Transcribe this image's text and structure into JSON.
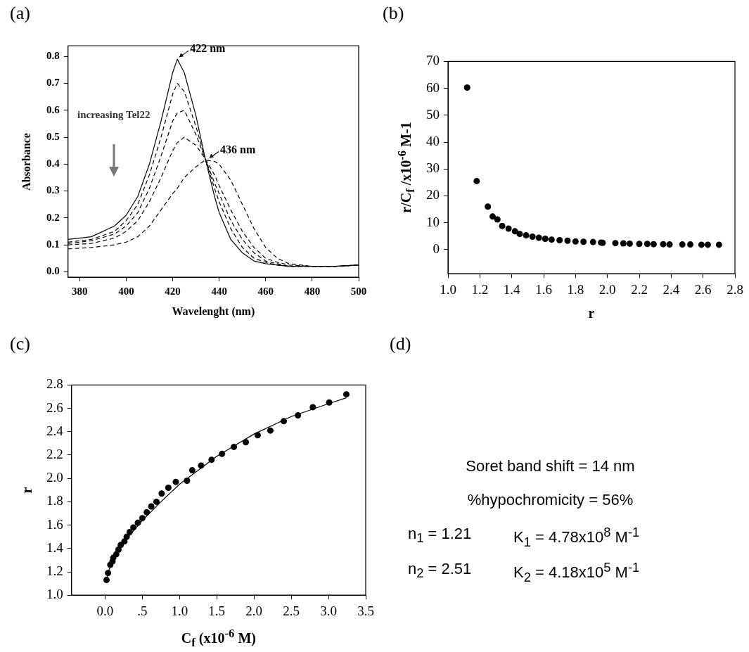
{
  "chart_data": [
    {
      "type": "line",
      "title": "(a)",
      "xlabel": "Wavelenght (nm)",
      "ylabel": "Absorbance",
      "x": [
        375,
        385,
        395,
        400,
        405,
        410,
        415,
        420,
        422,
        425,
        430,
        434,
        438,
        440,
        445,
        450,
        455,
        460,
        465,
        470,
        480,
        490,
        500
      ],
      "series": [
        {
          "color": "#000000",
          "line_style": "solid",
          "values": [
            0.12,
            0.13,
            0.17,
            0.21,
            0.28,
            0.4,
            0.56,
            0.74,
            0.79,
            0.74,
            0.58,
            0.42,
            0.28,
            0.22,
            0.12,
            0.07,
            0.04,
            0.03,
            0.025,
            0.02,
            0.02,
            0.02,
            0.025
          ]
        },
        {
          "color": "#000000",
          "line_style": "dashed",
          "values": [
            0.11,
            0.12,
            0.15,
            0.19,
            0.25,
            0.36,
            0.5,
            0.66,
            0.7,
            0.67,
            0.54,
            0.42,
            0.31,
            0.26,
            0.16,
            0.09,
            0.05,
            0.035,
            0.025,
            0.02,
            0.02,
            0.02,
            0.025
          ]
        },
        {
          "color": "#000000",
          "line_style": "dashed",
          "values": [
            0.105,
            0.115,
            0.14,
            0.17,
            0.22,
            0.31,
            0.43,
            0.56,
            0.59,
            0.6,
            0.51,
            0.42,
            0.33,
            0.29,
            0.19,
            0.12,
            0.07,
            0.04,
            0.03,
            0.02,
            0.02,
            0.02,
            0.025
          ]
        },
        {
          "color": "#000000",
          "line_style": "dashed",
          "values": [
            0.1,
            0.105,
            0.125,
            0.15,
            0.19,
            0.26,
            0.35,
            0.45,
            0.48,
            0.5,
            0.47,
            0.42,
            0.36,
            0.32,
            0.23,
            0.15,
            0.09,
            0.05,
            0.035,
            0.025,
            0.02,
            0.02,
            0.025
          ]
        },
        {
          "color": "#000000",
          "line_style": "dashed",
          "values": [
            0.085,
            0.09,
            0.1,
            0.11,
            0.13,
            0.17,
            0.23,
            0.29,
            0.31,
            0.35,
            0.39,
            0.415,
            0.41,
            0.4,
            0.34,
            0.25,
            0.16,
            0.09,
            0.05,
            0.03,
            0.02,
            0.02,
            0.025
          ]
        }
      ],
      "xlim": [
        375,
        500
      ],
      "xticks": [
        380,
        400,
        420,
        440,
        460,
        480,
        500
      ],
      "ylim": [
        -0.02,
        0.84
      ],
      "yticks": [
        {
          "value": 0,
          "label": "0.0"
        },
        0.1,
        0.2,
        0.3,
        0.4,
        0.5,
        0.6,
        0.7,
        0.8
      ],
      "annotations": [
        {
          "text": "422 nm",
          "x": 422,
          "y": 0.79
        },
        {
          "text": "436 nm",
          "x": 435,
          "y": 0.415
        },
        "increasing Tel22"
      ],
      "grid": false,
      "legend": false
    },
    {
      "type": "scatter",
      "title": "(b)",
      "xlabel": "r",
      "ylabel": "r/C$_{f}$ /x10$^{-6}$ M-1",
      "x": [
        1.12,
        1.18,
        1.25,
        1.28,
        1.31,
        1.34,
        1.38,
        1.42,
        1.45,
        1.49,
        1.53,
        1.57,
        1.61,
        1.65,
        1.7,
        1.75,
        1.8,
        1.85,
        1.91,
        1.96,
        1.97,
        2.05,
        2.1,
        2.14,
        2.2,
        2.25,
        2.29,
        2.35,
        2.39,
        2.47,
        2.52,
        2.59,
        2.63,
        2.7
      ],
      "series": [
        {
          "color": "#000000",
          "values": [
            60.3,
            25.5,
            16,
            12.3,
            11.2,
            8.8,
            7.8,
            6.8,
            5.8,
            5.3,
            4.8,
            4.4,
            4.0,
            3.7,
            3.5,
            3.3,
            3.0,
            2.9,
            2.8,
            2.6,
            2.5,
            2.4,
            2.3,
            2.2,
            2.1,
            2.1,
            2.0,
            2.0,
            1.9,
            1.9,
            1.9,
            1.8,
            1.8,
            1.8
          ]
        }
      ],
      "xlim": [
        1.0,
        2.8
      ],
      "xticks": [
        {
          "value": 1,
          "label": "1.0"
        },
        1.2,
        1.4,
        1.6,
        1.8,
        {
          "value": 2,
          "label": "2.0"
        },
        2.2,
        2.4,
        2.6,
        2.8
      ],
      "ylim": [
        -9,
        70
      ],
      "yticks": [
        0,
        10,
        20,
        30,
        40,
        50,
        60,
        70
      ],
      "grid": false,
      "legend": false,
      "marker": "circle"
    },
    {
      "type": "scatter",
      "title": "(c)",
      "xlabel": "C$_{f}$ (x10$^{-6}$ M)",
      "ylabel": "r",
      "series": [
        {
          "type": "scatter",
          "color": "#000000",
          "x": [
            0.02,
            0.04,
            0.07,
            0.1,
            0.11,
            0.15,
            0.18,
            0.21,
            0.26,
            0.29,
            0.33,
            0.38,
            0.44,
            0.5,
            0.56,
            0.62,
            0.69,
            0.76,
            0.85,
            0.95,
            1.1,
            1.17,
            1.29,
            1.43,
            1.57,
            1.73,
            1.89,
            2.05,
            2.22,
            2.4,
            2.59,
            2.79,
            3.01,
            3.24
          ],
          "values": [
            1.13,
            1.19,
            1.26,
            1.29,
            1.32,
            1.35,
            1.39,
            1.43,
            1.46,
            1.5,
            1.54,
            1.58,
            1.62,
            1.66,
            1.71,
            1.76,
            1.8,
            1.87,
            1.92,
            1.97,
            1.98,
            2.07,
            2.11,
            2.16,
            2.21,
            2.27,
            2.31,
            2.37,
            2.41,
            2.49,
            2.54,
            2.61,
            2.65,
            2.72
          ]
        },
        {
          "type": "line",
          "marker": "none",
          "color": "#000000",
          "x": [
            0.02,
            0.05,
            0.1,
            0.2,
            0.3,
            0.5,
            0.75,
            1.0,
            1.5,
            2.0,
            2.5,
            3.0,
            3.24
          ],
          "values": [
            1.14,
            1.21,
            1.29,
            1.4,
            1.49,
            1.64,
            1.8,
            1.95,
            2.19,
            2.38,
            2.53,
            2.64,
            2.69
          ]
        }
      ],
      "xlim": [
        -0.45,
        3.5
      ],
      "xticks": [
        {
          "value": 0,
          "label": "0.0"
        },
        {
          "value": 0.5,
          "label": ".5"
        },
        {
          "value": 1,
          "label": "1.0"
        },
        1.5,
        {
          "value": 2,
          "label": "2.0"
        },
        2.5,
        {
          "value": 3,
          "label": "3.0"
        },
        3.5
      ],
      "ylim": [
        1.0,
        2.8
      ],
      "yticks": [
        {
          "value": 1,
          "label": "1.0"
        },
        1.2,
        1.4,
        1.6,
        1.8,
        {
          "value": 2,
          "label": "2.0"
        },
        2.2,
        2.4,
        2.6,
        2.8
      ],
      "grid": false,
      "legend": false,
      "marker": "circle"
    },
    {
      "type": "other",
      "title": "(d)",
      "annotations": [
        "Soret band shift = 14 nm",
        "%hypochromicity = 56%",
        "n$_{1}$ = 1.21",
        "K$_{1}$ = 4.78x10$^{8}$ M$^{-1}$",
        "n$_{2}$ = 2.51",
        "K$_{2}$ = 4.18x10$^{5}$ M$^{-1}$"
      ]
    }
  ]
}
